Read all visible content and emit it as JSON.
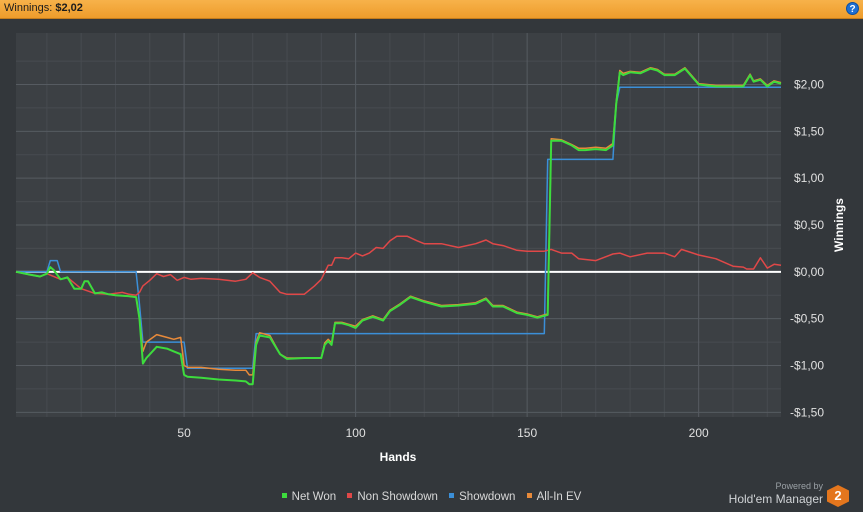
{
  "header": {
    "winnings_label": "Winnings:",
    "winnings_value": "$2,02",
    "help_icon": "?"
  },
  "footer": {
    "powered_by": "Powered by",
    "brand": "Hold'em Manager",
    "logo_text": "2"
  },
  "colors": {
    "net_won": "#3ddc3d",
    "non_showdown": "#e04848",
    "showdown": "#3b8fd8",
    "all_in_ev": "#e88a3a",
    "zero_line": "#ffffff"
  },
  "chart_data": {
    "type": "line",
    "xlabel": "Hands",
    "ylabel": "Winnings",
    "xlim": [
      1,
      224
    ],
    "ylim": [
      -1.55,
      2.55
    ],
    "x_ticks": [
      50,
      100,
      150,
      200
    ],
    "y_ticks": [
      2.0,
      1.5,
      1.0,
      0.5,
      0.0,
      -0.5,
      -1.0,
      -1.5
    ],
    "y_tick_labels": [
      "$2,00",
      "$1,50",
      "$1,00",
      "$0,50",
      "$0,00",
      "-$0,50",
      "-$1,00",
      "-$1,50"
    ],
    "grid": true,
    "legend_position": "bottom",
    "series": [
      {
        "name": "Net Won",
        "color": "#3ddc3d",
        "x": [
          1,
          5,
          8,
          10,
          11,
          12,
          14,
          16,
          17,
          18,
          20,
          21,
          22,
          24,
          26,
          28,
          30,
          34,
          36,
          37,
          38,
          39,
          42,
          45,
          47,
          49,
          50,
          51,
          55,
          60,
          65,
          68,
          69,
          70,
          71,
          72,
          75,
          78,
          80,
          85,
          90,
          91,
          92,
          93,
          94,
          96,
          98,
          100,
          102,
          105,
          108,
          110,
          113,
          116,
          120,
          125,
          130,
          135,
          138,
          140,
          143,
          147,
          150,
          153,
          155,
          156,
          157,
          160,
          163,
          165,
          167,
          170,
          173,
          175,
          176,
          177,
          178,
          180,
          183,
          186,
          188,
          190,
          193,
          196,
          200,
          205,
          210,
          213,
          215,
          216,
          218,
          220,
          222,
          224
        ],
        "y": [
          0,
          -0.03,
          -0.05,
          -0.02,
          0.05,
          0.02,
          -0.08,
          -0.06,
          -0.12,
          -0.18,
          -0.18,
          -0.1,
          -0.1,
          -0.23,
          -0.22,
          -0.24,
          -0.25,
          -0.26,
          -0.27,
          -0.5,
          -0.98,
          -0.92,
          -0.8,
          -0.82,
          -0.85,
          -0.88,
          -1.1,
          -1.12,
          -1.13,
          -1.15,
          -1.16,
          -1.17,
          -1.2,
          -1.2,
          -0.78,
          -0.68,
          -0.7,
          -0.88,
          -0.93,
          -0.92,
          -0.92,
          -0.78,
          -0.74,
          -0.78,
          -0.55,
          -0.55,
          -0.57,
          -0.6,
          -0.52,
          -0.48,
          -0.52,
          -0.42,
          -0.35,
          -0.27,
          -0.32,
          -0.37,
          -0.36,
          -0.34,
          -0.29,
          -0.37,
          -0.37,
          -0.44,
          -0.46,
          -0.49,
          -0.47,
          -0.46,
          1.4,
          1.4,
          1.35,
          1.3,
          1.3,
          1.31,
          1.3,
          1.35,
          1.8,
          2.13,
          2.1,
          2.13,
          2.12,
          2.17,
          2.15,
          2.1,
          2.1,
          2.17,
          2.0,
          1.98,
          1.98,
          1.98,
          2.1,
          2.03,
          2.05,
          1.98,
          2.03,
          2.01
        ]
      },
      {
        "name": "Non Showdown",
        "color": "#e04848",
        "x": [
          1,
          5,
          8,
          10,
          14,
          16,
          18,
          20,
          24,
          28,
          32,
          34,
          36,
          37,
          38,
          40,
          42,
          44,
          46,
          48,
          50,
          52,
          55,
          60,
          65,
          68,
          70,
          72,
          75,
          78,
          80,
          85,
          88,
          90,
          92,
          93,
          94,
          96,
          98,
          100,
          102,
          104,
          106,
          108,
          110,
          112,
          115,
          118,
          120,
          125,
          130,
          135,
          138,
          140,
          143,
          147,
          150,
          155,
          157,
          160,
          163,
          165,
          170,
          175,
          177,
          180,
          185,
          190,
          193,
          195,
          200,
          205,
          210,
          213,
          214,
          215,
          216,
          218,
          220,
          222,
          224
        ],
        "y": [
          0,
          -0.03,
          -0.05,
          -0.02,
          -0.08,
          -0.06,
          -0.12,
          -0.18,
          -0.23,
          -0.24,
          -0.22,
          -0.24,
          -0.25,
          -0.22,
          -0.15,
          -0.09,
          -0.02,
          -0.05,
          -0.03,
          -0.09,
          -0.06,
          -0.08,
          -0.07,
          -0.08,
          -0.1,
          -0.08,
          -0.01,
          -0.06,
          -0.1,
          -0.22,
          -0.24,
          -0.24,
          -0.15,
          -0.08,
          0.07,
          0.07,
          0.15,
          0.15,
          0.14,
          0.2,
          0.17,
          0.2,
          0.26,
          0.25,
          0.33,
          0.38,
          0.38,
          0.33,
          0.3,
          0.3,
          0.26,
          0.3,
          0.34,
          0.3,
          0.28,
          0.23,
          0.22,
          0.22,
          0.24,
          0.2,
          0.2,
          0.14,
          0.12,
          0.19,
          0.2,
          0.16,
          0.2,
          0.2,
          0.16,
          0.24,
          0.18,
          0.14,
          0.06,
          0.05,
          0.03,
          0.03,
          0.03,
          0.15,
          0.04,
          0.08,
          0.07
        ]
      },
      {
        "name": "Showdown",
        "color": "#3b8fd8",
        "x": [
          1,
          10,
          11,
          13,
          14,
          36,
          37,
          38,
          50,
          51,
          69,
          70,
          71,
          93,
          94,
          155,
          156,
          157,
          175,
          176,
          177,
          224
        ],
        "y": [
          0,
          0,
          0.12,
          0.12,
          0,
          0,
          -0.35,
          -0.75,
          -0.75,
          -1.03,
          -1.03,
          -1.03,
          -0.66,
          -0.66,
          -0.66,
          -0.66,
          1.2,
          1.2,
          1.2,
          1.8,
          1.97,
          1.97
        ]
      },
      {
        "name": "All-In EV",
        "color": "#e88a3a",
        "x": [
          1,
          5,
          8,
          10,
          11,
          12,
          14,
          16,
          17,
          18,
          20,
          21,
          22,
          24,
          26,
          28,
          30,
          34,
          36,
          37,
          38,
          39,
          42,
          45,
          47,
          49,
          50,
          51,
          55,
          60,
          65,
          68,
          69,
          70,
          71,
          72,
          75,
          78,
          80,
          85,
          90,
          91,
          92,
          93,
          94,
          96,
          98,
          100,
          102,
          105,
          108,
          110,
          113,
          116,
          120,
          125,
          130,
          135,
          138,
          140,
          143,
          147,
          150,
          153,
          155,
          156,
          157,
          160,
          163,
          165,
          167,
          170,
          173,
          175,
          176,
          177,
          178,
          180,
          183,
          186,
          188,
          190,
          193,
          196,
          200,
          205,
          210,
          213,
          215,
          216,
          218,
          220,
          222,
          224
        ],
        "y": [
          0,
          -0.03,
          -0.05,
          -0.02,
          0.05,
          0.02,
          -0.08,
          -0.06,
          -0.12,
          -0.18,
          -0.18,
          -0.1,
          -0.1,
          -0.23,
          -0.22,
          -0.24,
          -0.25,
          -0.26,
          -0.27,
          -0.5,
          -0.85,
          -0.75,
          -0.67,
          -0.7,
          -0.72,
          -0.7,
          -1.0,
          -1.02,
          -1.02,
          -1.04,
          -1.05,
          -1.05,
          -1.1,
          -1.1,
          -0.75,
          -0.65,
          -0.68,
          -0.88,
          -0.92,
          -0.92,
          -0.92,
          -0.76,
          -0.72,
          -0.76,
          -0.54,
          -0.54,
          -0.56,
          -0.58,
          -0.51,
          -0.47,
          -0.51,
          -0.41,
          -0.34,
          -0.26,
          -0.31,
          -0.36,
          -0.35,
          -0.33,
          -0.28,
          -0.36,
          -0.36,
          -0.43,
          -0.45,
          -0.48,
          -0.46,
          -0.45,
          1.42,
          1.41,
          1.36,
          1.32,
          1.32,
          1.33,
          1.32,
          1.37,
          1.82,
          2.15,
          2.12,
          2.14,
          2.13,
          2.18,
          2.16,
          2.11,
          2.11,
          2.18,
          2.01,
          1.99,
          1.99,
          1.99,
          2.11,
          2.04,
          2.06,
          1.99,
          2.04,
          2.02
        ]
      }
    ]
  }
}
